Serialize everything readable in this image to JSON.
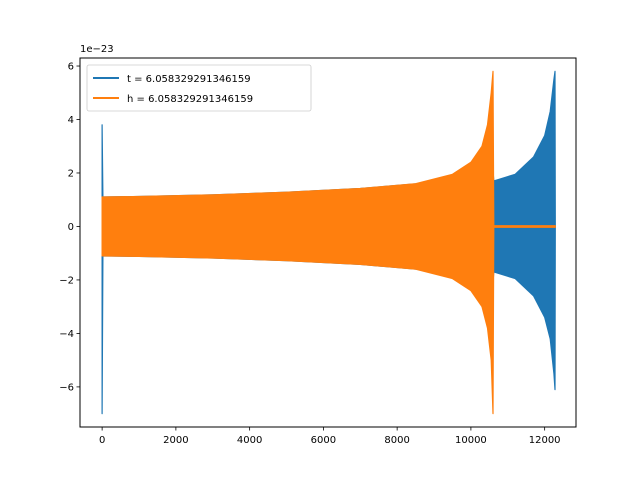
{
  "chart_data": {
    "type": "line",
    "title": "",
    "xlabel": "",
    "ylabel": "",
    "y_offset_label": "1e−23",
    "xlim": [
      -600,
      12850
    ],
    "ylim": [
      -7.5,
      6.3
    ],
    "x_ticks": [
      0,
      2000,
      4000,
      6000,
      8000,
      10000,
      12000
    ],
    "x_tick_labels": [
      "0",
      "2000",
      "4000",
      "6000",
      "8000",
      "10000",
      "12000"
    ],
    "y_ticks": [
      -6,
      -4,
      -2,
      0,
      2,
      4,
      6
    ],
    "y_tick_labels": [
      "−6",
      "−4",
      "−2",
      "0",
      "2",
      "4",
      "6"
    ],
    "grid": false,
    "legend_position": "top-left",
    "series": [
      {
        "name": "t = 6.058329291346159",
        "color": "#1f77b4",
        "envelope": [
          {
            "x": 0,
            "lower": -7.0,
            "upper": 3.8
          },
          {
            "x": 20,
            "lower": -1.1,
            "upper": 1.1
          },
          {
            "x": 1000,
            "lower": -1.12,
            "upper": 1.12
          },
          {
            "x": 3000,
            "lower": -1.18,
            "upper": 1.18
          },
          {
            "x": 5000,
            "lower": -1.28,
            "upper": 1.28
          },
          {
            "x": 7000,
            "lower": -1.42,
            "upper": 1.42
          },
          {
            "x": 9000,
            "lower": -1.65,
            "upper": 1.65
          },
          {
            "x": 10000,
            "lower": -1.9,
            "upper": 1.9
          },
          {
            "x": 10600,
            "lower": -2.1,
            "upper": 2.1
          },
          {
            "x": 10620,
            "lower": -1.7,
            "upper": 1.7
          },
          {
            "x": 11200,
            "lower": -1.95,
            "upper": 1.95
          },
          {
            "x": 11700,
            "lower": -2.6,
            "upper": 2.6
          },
          {
            "x": 12000,
            "lower": -3.4,
            "upper": 3.4
          },
          {
            "x": 12150,
            "lower": -4.2,
            "upper": 4.3
          },
          {
            "x": 12250,
            "lower": -5.5,
            "upper": 5.5
          },
          {
            "x": 12280,
            "lower": -6.1,
            "upper": 5.8
          },
          {
            "x": 12290,
            "lower": -0.1,
            "upper": 0.1
          }
        ]
      },
      {
        "name": "h = 6.058329291346159",
        "color": "#ff7f0e",
        "envelope": [
          {
            "x": 0,
            "lower": -1.1,
            "upper": 1.1
          },
          {
            "x": 1000,
            "lower": -1.12,
            "upper": 1.12
          },
          {
            "x": 3000,
            "lower": -1.18,
            "upper": 1.18
          },
          {
            "x": 5000,
            "lower": -1.28,
            "upper": 1.28
          },
          {
            "x": 7000,
            "lower": -1.42,
            "upper": 1.42
          },
          {
            "x": 8500,
            "lower": -1.6,
            "upper": 1.6
          },
          {
            "x": 9500,
            "lower": -1.95,
            "upper": 1.95
          },
          {
            "x": 10000,
            "lower": -2.4,
            "upper": 2.4
          },
          {
            "x": 10300,
            "lower": -3.0,
            "upper": 3.0
          },
          {
            "x": 10450,
            "lower": -3.8,
            "upper": 3.8
          },
          {
            "x": 10550,
            "lower": -5.0,
            "upper": 5.0
          },
          {
            "x": 10600,
            "lower": -7.0,
            "upper": 5.8
          },
          {
            "x": 10620,
            "lower": -0.03,
            "upper": 0.03
          },
          {
            "x": 12290,
            "lower": -0.03,
            "upper": 0.03
          }
        ]
      }
    ]
  }
}
